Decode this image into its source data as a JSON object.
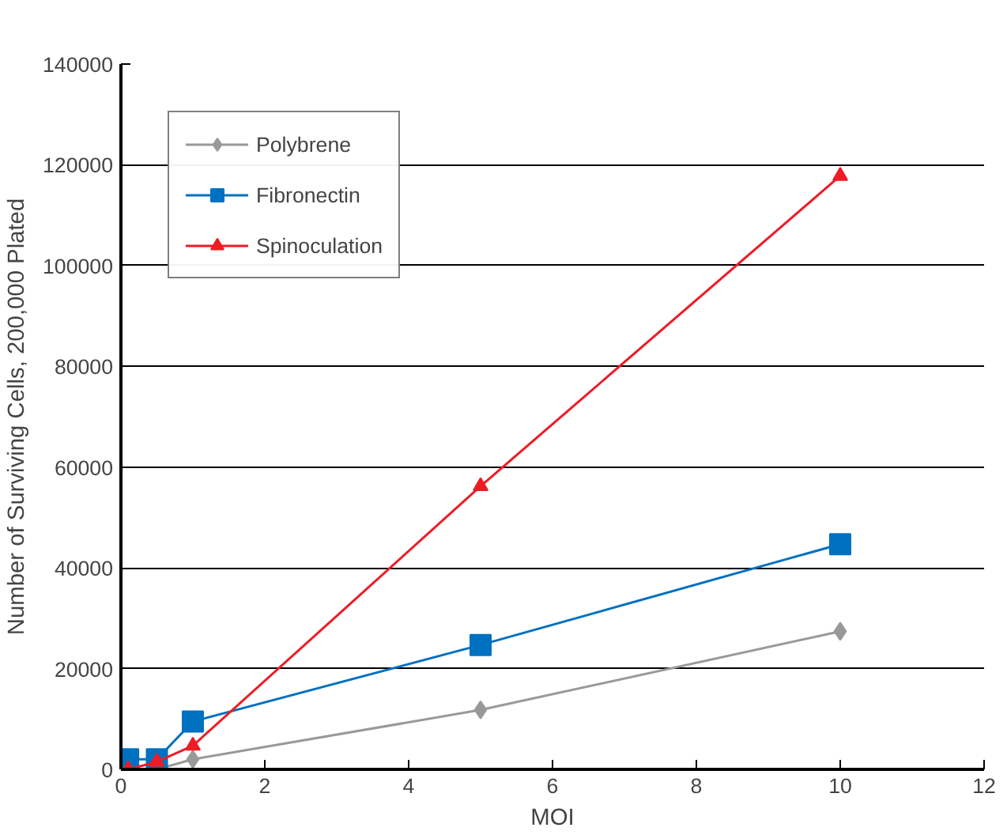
{
  "chart_data": {
    "type": "line",
    "xlabel": "MOI",
    "ylabel": "Number of Surviving Cells, 200,000 Plated",
    "x": [
      0.1,
      0.5,
      1,
      5,
      10
    ],
    "series": [
      {
        "name": "Polybrene",
        "color": "#999999",
        "marker": "diamond",
        "values": [
          0,
          0,
          2000,
          11800,
          27400
        ]
      },
      {
        "name": "Fibronectin",
        "color": "#0070c0",
        "marker": "square",
        "values": [
          2000,
          2000,
          9500,
          24700,
          44700
        ]
      },
      {
        "name": "Spinoculation",
        "color": "#ee1c25",
        "marker": "triangle",
        "values": [
          0,
          1500,
          4700,
          56200,
          117800
        ]
      }
    ],
    "xlim": [
      0,
      12
    ],
    "xticks": [
      0,
      2,
      4,
      6,
      8,
      10,
      12
    ],
    "ylim": [
      0,
      140000
    ],
    "yticks": [
      0,
      20000,
      40000,
      60000,
      80000,
      100000,
      120000,
      140000
    ],
    "grid": "y",
    "legend": "top left"
  }
}
